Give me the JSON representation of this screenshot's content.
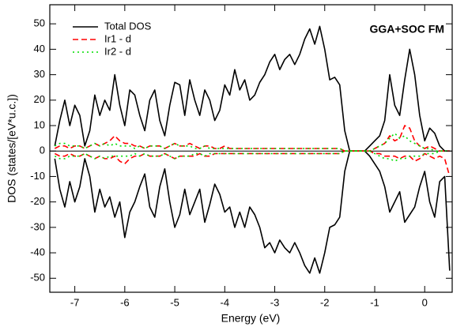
{
  "chart_data": {
    "type": "line",
    "annotation": "GGA+SOC FM",
    "x_label": "Energy (eV)",
    "y_label": "DOS (states/[eV*u.c.])",
    "xlim": [
      -7.5,
      0.55
    ],
    "ylim": [
      -55.5,
      57.5
    ],
    "xticks": [
      -7,
      -6,
      -5,
      -4,
      -3,
      -2,
      -1,
      0
    ],
    "yticks": [
      -50,
      -40,
      -30,
      -20,
      -10,
      0,
      10,
      20,
      30,
      40,
      50
    ],
    "x": [
      -7.4,
      -7.3,
      -7.2,
      -7.1,
      -7.0,
      -6.9,
      -6.8,
      -6.7,
      -6.6,
      -6.5,
      -6.4,
      -6.3,
      -6.2,
      -6.1,
      -6.0,
      -5.9,
      -5.8,
      -5.7,
      -5.6,
      -5.5,
      -5.4,
      -5.3,
      -5.2,
      -5.1,
      -5.0,
      -4.9,
      -4.8,
      -4.7,
      -4.6,
      -4.5,
      -4.4,
      -4.3,
      -4.2,
      -4.1,
      -4.0,
      -3.9,
      -3.8,
      -3.7,
      -3.6,
      -3.5,
      -3.4,
      -3.3,
      -3.2,
      -3.1,
      -3.0,
      -2.9,
      -2.8,
      -2.7,
      -2.6,
      -2.5,
      -2.4,
      -2.3,
      -2.2,
      -2.1,
      -2.0,
      -1.9,
      -1.8,
      -1.7,
      -1.6,
      -1.5,
      -1.4,
      -1.3,
      -1.2,
      -1.1,
      -1.0,
      -0.9,
      -0.8,
      -0.7,
      -0.6,
      -0.5,
      -0.4,
      -0.3,
      -0.2,
      -0.1,
      0.0,
      0.1,
      0.2,
      0.3,
      0.4,
      0.5
    ],
    "series": [
      {
        "name": "Total DOS",
        "color": "#000000",
        "dash": "none",
        "values": [
          2,
          12,
          20,
          10,
          18,
          14,
          2,
          8,
          22,
          14,
          20,
          16,
          30,
          18,
          10,
          24,
          22,
          14,
          8,
          20,
          24,
          12,
          6,
          18,
          27,
          26,
          14,
          28,
          20,
          14,
          24,
          20,
          12,
          16,
          26,
          22,
          32,
          24,
          28,
          20,
          22,
          27,
          30,
          35,
          38,
          32,
          36,
          38,
          34,
          38,
          44,
          48,
          42,
          49,
          40,
          28,
          29,
          26,
          8,
          0,
          0,
          0,
          0,
          2,
          4,
          6,
          12,
          30,
          18,
          14,
          28,
          40,
          30,
          14,
          4,
          9,
          7,
          2,
          0,
          0
        ],
        "down": [
          -3,
          -15,
          -22,
          -12,
          -20,
          -14,
          -3,
          -10,
          -24,
          -15,
          -22,
          -18,
          -26,
          -20,
          -34,
          -24,
          -20,
          -14,
          -9,
          -22,
          -26,
          -14,
          -7,
          -20,
          -30,
          -25,
          -15,
          -25,
          -20,
          -15,
          -28,
          -21,
          -13,
          -17,
          -24,
          -22,
          -30,
          -24,
          -30,
          -22,
          -25,
          -30,
          -38,
          -36,
          -40,
          -35,
          -38,
          -40,
          -36,
          -40,
          -45,
          -48,
          -42,
          -48,
          -40,
          -30,
          -29,
          -26,
          -8,
          0,
          0,
          0,
          0,
          -2,
          -5,
          -8,
          -14,
          -24,
          -20,
          -16,
          -28,
          -25,
          -22,
          -14,
          -8,
          -20,
          -26,
          -12,
          -10,
          -47
        ]
      },
      {
        "name": "Ir1 - d",
        "color": "#ff0000",
        "dash": "7,4",
        "values": [
          1,
          2,
          2,
          1,
          2,
          2,
          1,
          2,
          3,
          2,
          3,
          4,
          6,
          4,
          3,
          3,
          2,
          2,
          1,
          2,
          2,
          2,
          1,
          2,
          3,
          2,
          2,
          3,
          2,
          1,
          2,
          2,
          1,
          1,
          2,
          1,
          1,
          1,
          1,
          1,
          1,
          1,
          1,
          1,
          1,
          1,
          1,
          1,
          1,
          1,
          1,
          1,
          1,
          1,
          1,
          1,
          1,
          1,
          0,
          0,
          0,
          0,
          0,
          0,
          1,
          2,
          3,
          6,
          4,
          5,
          10,
          9,
          4,
          2,
          1,
          2,
          1,
          0,
          0,
          0
        ],
        "down": [
          -1,
          -2,
          -2,
          -1,
          -2,
          -2,
          -1,
          -2,
          -3,
          -2,
          -3,
          -3,
          -2,
          -4,
          -5,
          -3,
          -2,
          -2,
          -1,
          -2,
          -2,
          -2,
          -1,
          -2,
          -3,
          -2,
          -2,
          -2,
          -2,
          -1,
          -2,
          -2,
          -1,
          -1,
          -1,
          -1,
          -1,
          -1,
          -1,
          -1,
          -1,
          -1,
          -1,
          -1,
          -1,
          -1,
          -1,
          -1,
          -1,
          -1,
          -1,
          -1,
          -1,
          -1,
          -1,
          -1,
          -1,
          -1,
          0,
          0,
          0,
          0,
          0,
          0,
          -1,
          -1,
          -2,
          -2,
          -2,
          -3,
          -2,
          -2,
          -4,
          -3,
          -1,
          -2,
          -3,
          -2,
          -3,
          -10
        ]
      },
      {
        "name": "Ir2 - d",
        "color": "#00dd00",
        "dash": "2,4",
        "values": [
          2,
          3,
          3,
          2,
          2,
          2,
          1,
          2,
          3,
          2,
          3,
          2,
          3,
          2,
          2,
          2,
          1,
          2,
          1,
          2,
          2,
          2,
          1,
          2,
          3,
          2,
          2,
          2,
          1,
          1,
          2,
          1,
          1,
          1,
          1,
          1,
          1,
          1,
          1,
          1,
          1,
          1,
          1,
          1,
          1,
          1,
          1,
          1,
          1,
          1,
          1,
          1,
          1,
          1,
          1,
          1,
          1,
          1,
          0,
          0,
          0,
          0,
          0,
          0,
          1,
          2,
          3,
          5,
          7,
          5,
          6,
          4,
          3,
          2,
          1,
          1,
          0,
          0,
          0,
          0
        ],
        "down": [
          -2,
          -3,
          -3,
          -2,
          -2,
          -2,
          -1,
          -2,
          -3,
          -2,
          -3,
          -2,
          -2,
          -2,
          -2,
          -2,
          -1,
          -2,
          -1,
          -2,
          -2,
          -2,
          -1,
          -2,
          -3,
          -2,
          -2,
          -2,
          -1,
          -1,
          -2,
          -1,
          -1,
          -1,
          -1,
          -1,
          -1,
          -1,
          -1,
          -1,
          -1,
          -1,
          -1,
          -1,
          -1,
          -1,
          -1,
          -1,
          -1,
          -1,
          -1,
          -1,
          -1,
          -1,
          -1,
          -1,
          -1,
          -1,
          0,
          0,
          0,
          0,
          0,
          0,
          -1,
          -2,
          -3,
          -3,
          -4,
          -3,
          -3,
          -2,
          -2,
          -2,
          -1,
          -1,
          -1,
          0,
          0,
          0
        ]
      }
    ],
    "legend": "upper left"
  }
}
